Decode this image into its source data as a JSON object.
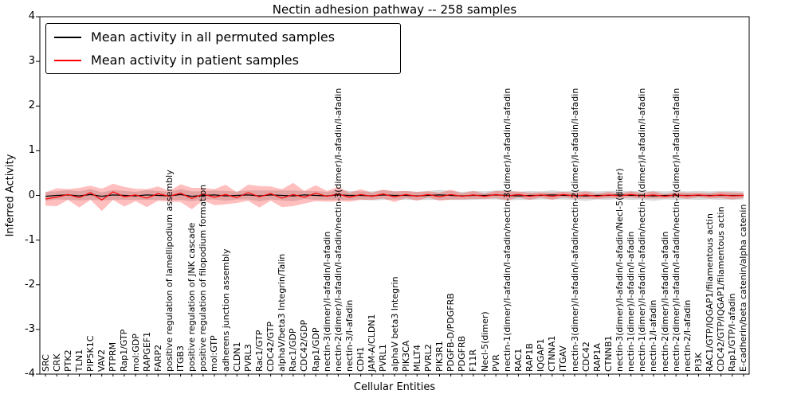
{
  "figure": {
    "title": "Nectin adhesion pathway -- 258 samples",
    "xlabel": "Cellular Entities",
    "ylabel": "Inferred Activity"
  },
  "legend": {
    "items": [
      {
        "label": "Mean activity in all permuted samples",
        "color": "#000000"
      },
      {
        "label": "Mean activity in patient samples",
        "color": "#ff0000"
      }
    ]
  },
  "chart_data": {
    "type": "line",
    "title": "Nectin adhesion pathway -- 258 samples",
    "xlabel": "Cellular Entities",
    "ylabel": "Inferred Activity",
    "ylim": [
      -4,
      4
    ],
    "yticks": [
      -4,
      -3,
      -2,
      -1,
      0,
      1,
      2,
      3,
      4
    ],
    "grid": false,
    "legend_position": "upper left",
    "categories": [
      "SRC",
      "CRK",
      "PTK2",
      "TLN1",
      "PIP5K1C",
      "VAV2",
      "PTPRM",
      "Rap1/GTP",
      "mol:GDP",
      "RAPGEF1",
      "FARP2",
      "positive regulation of lamellipodium assembly",
      "ITGB3",
      "positive regulation of JNK cascade",
      "positive regulation of filopodium formation",
      "mol:GTP",
      "adherens junction assembly",
      "CLDN1",
      "PVRL3",
      "Rac1/GTP",
      "CDC42/GTP",
      "alphaV/beta3 Integrin/Talin",
      "Rac1/GDP",
      "CDC42/GDP",
      "Rap1/GDP",
      "nectin-3(dimer)/I-afadin/I-afadin",
      "nectin-2(dimer)/I-afadin/I-afadin/nectin-3(dimer)/I-afadin/I-afadin",
      "nectin-3/I-afadin",
      "CDH1",
      "JAM-A/CLDN1",
      "PVRL1",
      "alphaV beta3 Integrin",
      "PIK3CA",
      "MLLT4",
      "PVRL2",
      "PIK3R1",
      "PDGFB-D/PDGFRB",
      "PDGFRB",
      "F11R",
      "Necl-5(dimer)",
      "PVR",
      "nectin-1(dimer)/I-afadin/I-afadin/nectin-3(dimer)/I-afadin/I-afadin",
      "RAC1",
      "RAP1B",
      "IQGAP1",
      "CTNNA1",
      "ITGAV",
      "nectin-3(dimer)/I-afadin/I-afadin/nectin-2(dimer)/I-afadin/I-afadin",
      "CDC42",
      "RAP1A",
      "CTNNB1",
      "nectin-3(dimer)/I-afadin/I-afadin/Necl-5(dimer)",
      "nectin-1(dimer)/I-afadin/I-afadin",
      "nectin-1(dimer)/I-afadin/I-afadin/nectin-1(dimer)/I-afadin/I-afadin",
      "nectin-1/I-afadin",
      "nectin-2(dimer)/I-afadin/I-afadin",
      "nectin-2(dimer)/I-afadin/I-afadin/nectin-2(dimer)/I-afadin/I-afadin",
      "nectin-2/I-afadin",
      "PI3K",
      "RAC1/GTP/IQGAP1/filamentous actin",
      "CDC42/GTP/IQGAP1/filamentous actin",
      "Rap1/GTP/I-afadin",
      "E-cadherin/beta catenin/alpha catenin"
    ],
    "series": [
      {
        "name": "Mean activity in all permuted samples",
        "color": "#000000",
        "band_color": "#969696",
        "band_opacity": 0.35,
        "values": [
          -0.02,
          0.0,
          0.01,
          -0.01,
          0.02,
          -0.02,
          0.01,
          0.0,
          -0.01,
          0.01,
          0.0,
          -0.01,
          0.02,
          -0.02,
          0.0,
          0.01,
          -0.01,
          0.0,
          0.01,
          -0.01,
          0.01,
          0.0,
          -0.01,
          0.01,
          0.0,
          -0.01,
          0.01,
          0.0,
          0.0,
          -0.01,
          0.01,
          0.0,
          0.0,
          -0.01,
          0.0,
          0.01,
          0.0,
          -0.01,
          0.0,
          0.0,
          0.01,
          0.0,
          -0.01,
          0.0,
          0.0,
          0.01,
          0.0,
          0.0,
          -0.01,
          0.0,
          0.0,
          0.01,
          0.0,
          0.0,
          -0.01,
          0.0,
          0.0,
          0.0,
          0.0,
          0.0,
          0.0,
          0.0,
          0.0
        ],
        "band": [
          0.1,
          0.09,
          0.11,
          0.1,
          0.12,
          0.09,
          0.11,
          0.1,
          0.09,
          0.11,
          0.1,
          0.09,
          0.12,
          0.11,
          0.09,
          0.1,
          0.11,
          0.09,
          0.1,
          0.12,
          0.1,
          0.11,
          0.12,
          0.09,
          0.1,
          0.09,
          0.11,
          0.1,
          0.09,
          0.1,
          0.11,
          0.09,
          0.1,
          0.09,
          0.1,
          0.11,
          0.1,
          0.09,
          0.1,
          0.09,
          0.1,
          0.11,
          0.09,
          0.1,
          0.09,
          0.1,
          0.09,
          0.1,
          0.11,
          0.09,
          0.1,
          0.09,
          0.1,
          0.09,
          0.11,
          0.09,
          0.1,
          0.09,
          0.1,
          0.09,
          0.1,
          0.1,
          0.09
        ]
      },
      {
        "name": "Mean activity in patient samples",
        "color": "#ff0000",
        "band_color": "#ff0000",
        "band_opacity": 0.25,
        "values": [
          -0.08,
          -0.04,
          0.02,
          -0.05,
          0.06,
          -0.1,
          0.08,
          -0.03,
          0.01,
          -0.06,
          0.04,
          -0.02,
          0.05,
          -0.07,
          0.03,
          -0.04,
          0.02,
          -0.05,
          0.06,
          -0.03,
          0.04,
          -0.06,
          0.02,
          -0.04,
          0.05,
          -0.02,
          0.03,
          -0.04,
          0.02,
          -0.02,
          0.03,
          -0.03,
          0.02,
          -0.02,
          0.02,
          -0.03,
          0.02,
          -0.02,
          0.01,
          -0.02,
          0.02,
          -0.01,
          0.02,
          -0.02,
          0.01,
          -0.02,
          0.02,
          -0.01,
          0.01,
          -0.02,
          0.01,
          -0.01,
          0.02,
          -0.01,
          0.01,
          -0.02,
          0.01,
          -0.01,
          0.01,
          -0.01,
          0.01,
          -0.01,
          0.0
        ],
        "band": [
          0.15,
          0.2,
          0.12,
          0.22,
          0.16,
          0.25,
          0.18,
          0.22,
          0.14,
          0.2,
          0.16,
          0.12,
          0.2,
          0.24,
          0.14,
          0.18,
          0.22,
          0.12,
          0.18,
          0.24,
          0.16,
          0.2,
          0.26,
          0.14,
          0.18,
          0.12,
          0.16,
          0.1,
          0.12,
          0.08,
          0.1,
          0.12,
          0.08,
          0.1,
          0.07,
          0.09,
          0.11,
          0.07,
          0.09,
          0.06,
          0.08,
          0.1,
          0.07,
          0.08,
          0.06,
          0.08,
          0.06,
          0.07,
          0.08,
          0.06,
          0.07,
          0.05,
          0.07,
          0.06,
          0.08,
          0.05,
          0.06,
          0.07,
          0.05,
          0.06,
          0.07,
          0.08,
          0.06
        ]
      }
    ]
  }
}
